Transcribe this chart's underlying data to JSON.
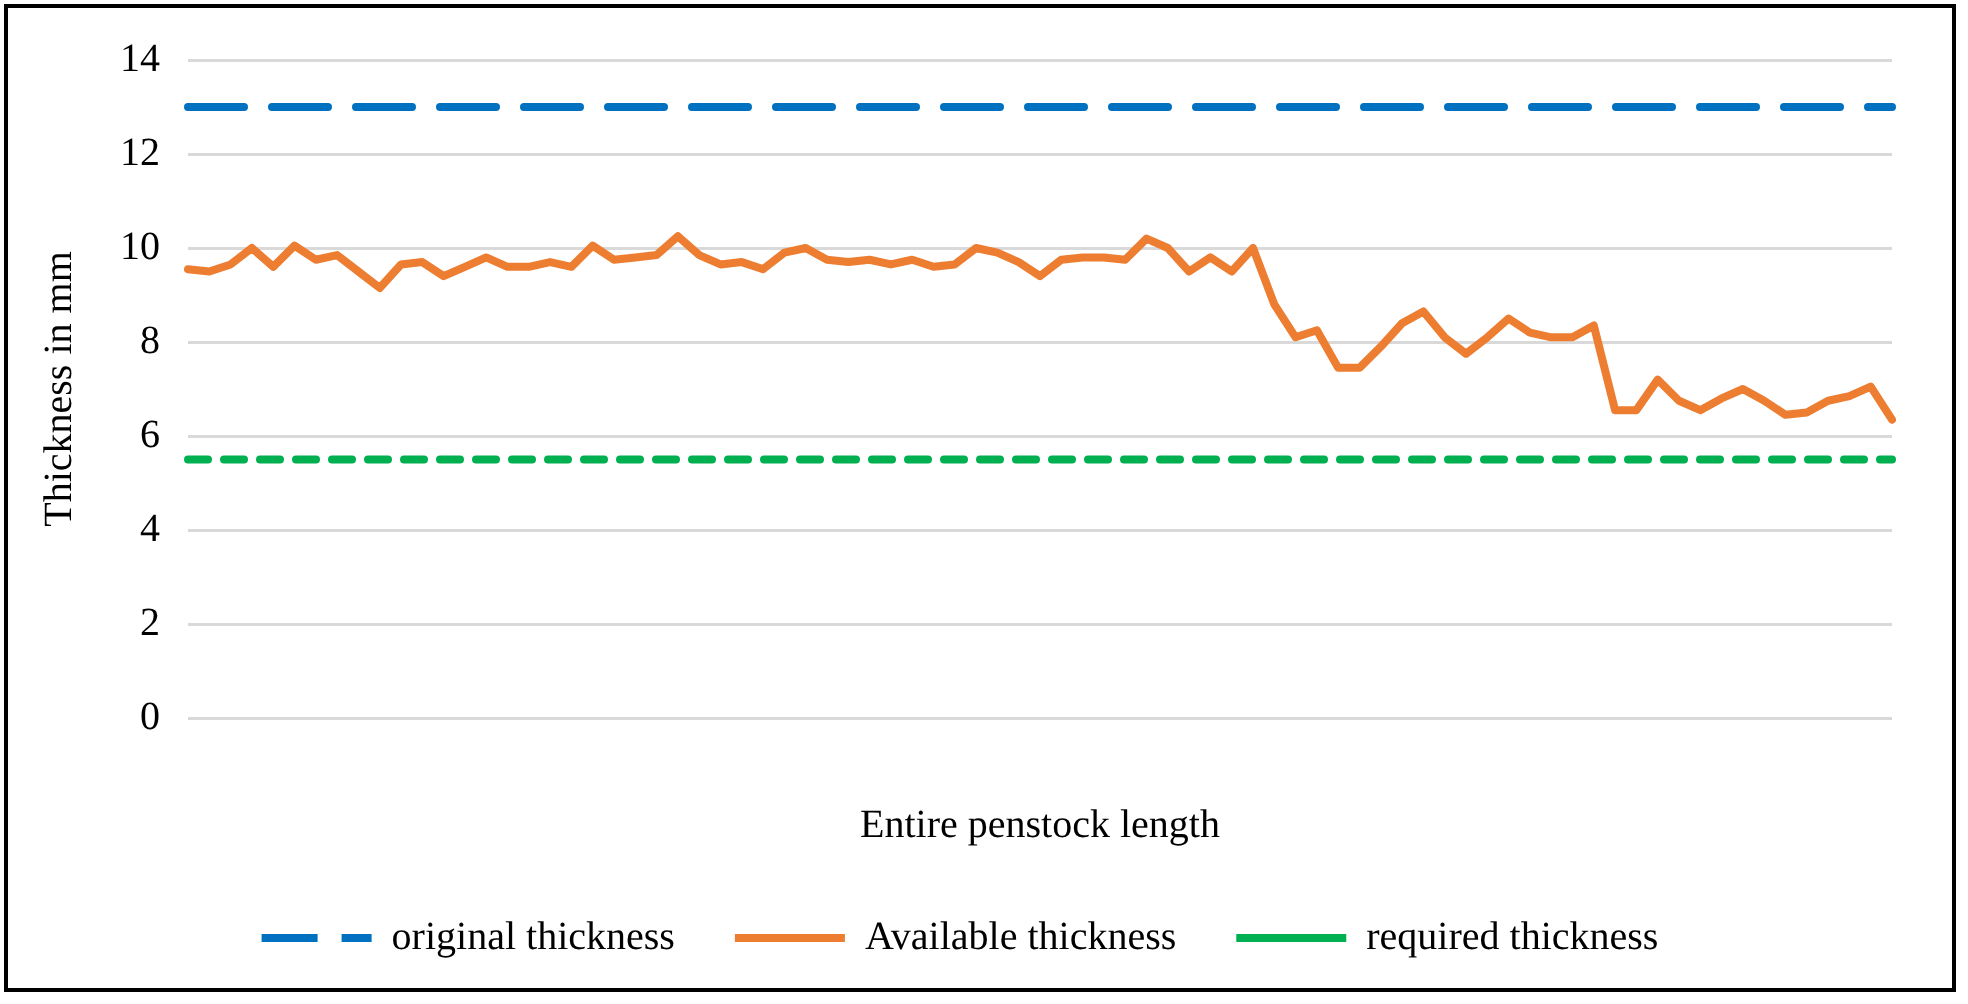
{
  "chart_data": {
    "type": "line",
    "xlabel": "Entire penstock length",
    "ylabel": "Thickness in mm",
    "ylim": [
      0,
      14
    ],
    "yticks": [
      0,
      2,
      4,
      6,
      8,
      10,
      12,
      14
    ],
    "grid": "y",
    "legend": "bottom",
    "marker": "none",
    "categories": [
      null,
      null,
      null,
      null,
      null,
      null,
      null,
      null,
      null,
      null,
      null,
      null,
      null,
      null,
      null,
      null,
      null,
      null,
      null,
      null,
      null,
      null,
      null,
      null,
      null,
      null,
      null,
      null,
      null,
      null,
      null,
      null,
      null,
      null,
      null,
      null,
      null,
      null,
      null,
      null,
      null,
      null,
      null,
      null,
      null,
      null,
      null,
      null,
      null,
      null,
      null,
      null,
      null,
      null,
      null,
      null,
      null,
      null,
      null,
      null,
      null,
      null,
      null,
      null,
      null,
      null,
      null,
      null,
      null,
      null,
      null,
      null,
      null,
      null,
      null,
      null,
      null,
      null,
      null,
      null,
      null
    ],
    "series": [
      {
        "name": "original thickness",
        "color": "#0070c0",
        "line_style": "dashed",
        "values": [
          13,
          13,
          13,
          13,
          13,
          13,
          13,
          13,
          13,
          13,
          13,
          13,
          13,
          13,
          13,
          13,
          13,
          13,
          13,
          13,
          13,
          13,
          13,
          13,
          13,
          13,
          13,
          13,
          13,
          13,
          13,
          13,
          13,
          13,
          13,
          13,
          13,
          13,
          13,
          13,
          13,
          13,
          13,
          13,
          13,
          13,
          13,
          13,
          13,
          13,
          13,
          13,
          13,
          13,
          13,
          13,
          13,
          13,
          13,
          13,
          13,
          13,
          13,
          13,
          13,
          13,
          13,
          13,
          13,
          13,
          13,
          13,
          13,
          13,
          13,
          13,
          13,
          13,
          13,
          13,
          13
        ]
      },
      {
        "name": "Available thickness",
        "color": "#ed7d31",
        "line_style": "solid",
        "values": [
          9.55,
          9.5,
          9.65,
          10.0,
          9.6,
          10.05,
          9.75,
          9.85,
          9.5,
          9.15,
          9.65,
          9.7,
          9.4,
          9.6,
          9.8,
          9.6,
          9.6,
          9.7,
          9.6,
          10.05,
          9.75,
          9.8,
          9.85,
          10.25,
          9.85,
          9.65,
          9.7,
          9.55,
          9.9,
          10.0,
          9.75,
          9.7,
          9.75,
          9.65,
          9.75,
          9.6,
          9.65,
          10.0,
          9.9,
          9.7,
          9.4,
          9.75,
          9.8,
          9.8,
          9.75,
          10.2,
          10.0,
          9.5,
          9.8,
          9.5,
          10.0,
          8.8,
          8.1,
          8.25,
          7.45,
          7.45,
          7.9,
          8.4,
          8.65,
          8.1,
          7.75,
          8.1,
          8.5,
          8.2,
          8.1,
          8.1,
          8.35,
          6.55,
          6.55,
          7.2,
          6.75,
          6.55,
          6.8,
          7.0,
          6.75,
          6.45,
          6.5,
          6.75,
          6.85,
          7.05,
          6.35
        ]
      },
      {
        "name": "required thickness",
        "color": "#00b050",
        "line_style": "dotted",
        "values": [
          5.5,
          5.5,
          5.5,
          5.5,
          5.5,
          5.5,
          5.5,
          5.5,
          5.5,
          5.5,
          5.5,
          5.5,
          5.5,
          5.5,
          5.5,
          5.5,
          5.5,
          5.5,
          5.5,
          5.5,
          5.5,
          5.5,
          5.5,
          5.5,
          5.5,
          5.5,
          5.5,
          5.5,
          5.5,
          5.5,
          5.5,
          5.5,
          5.5,
          5.5,
          5.5,
          5.5,
          5.5,
          5.5,
          5.5,
          5.5,
          5.5,
          5.5,
          5.5,
          5.5,
          5.5,
          5.5,
          5.5,
          5.5,
          5.5,
          5.5,
          5.5,
          5.5,
          5.5,
          5.5,
          5.5,
          5.5,
          5.5,
          5.5,
          5.5,
          5.5,
          5.5,
          5.5,
          5.5,
          5.5,
          5.5,
          5.5,
          5.5,
          5.5,
          5.5,
          5.5,
          5.5,
          5.5,
          5.5,
          5.5,
          5.5,
          5.5,
          5.5,
          5.5,
          5.5,
          5.5,
          5.5
        ]
      }
    ]
  }
}
